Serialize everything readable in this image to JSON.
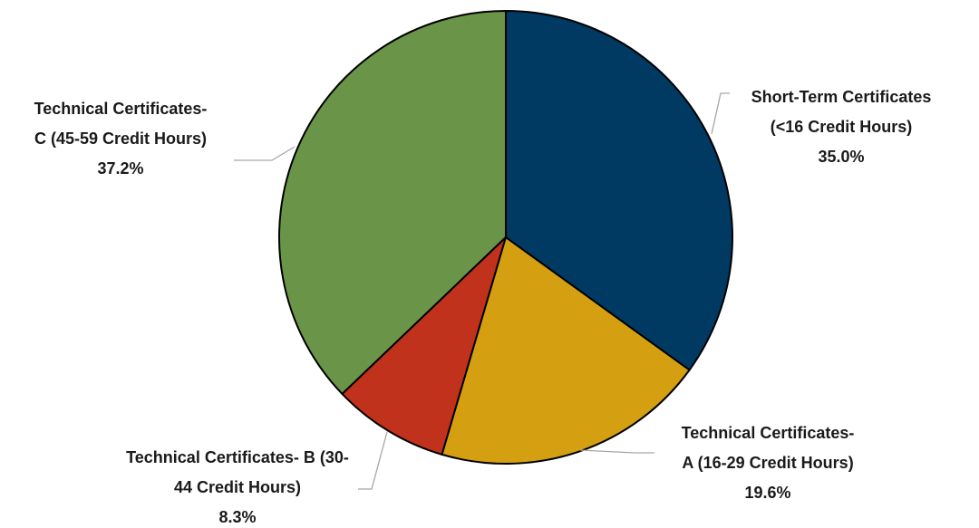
{
  "chart_data": {
    "type": "pie",
    "categories": [
      "Short-Term Certificates (<16 Credit Hours)",
      "Technical Certificates- A (16-29 Credit Hours)",
      "Technical Certificates- B (30-44 Credit Hours)",
      "Technical Certificates- C (45-59 Credit Hours)"
    ],
    "values": [
      35.0,
      19.6,
      8.3,
      37.2
    ],
    "value_labels": [
      "35.0%",
      "19.6%",
      "8.3%",
      "37.2%"
    ],
    "colors": [
      "#003a63",
      "#d4a012",
      "#c0321c",
      "#6a9548"
    ]
  }
}
